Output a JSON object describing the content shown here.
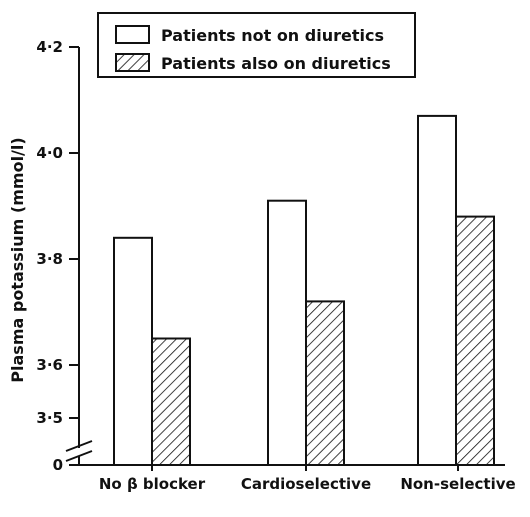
{
  "chart_data": {
    "type": "bar",
    "title": "",
    "xlabel": "",
    "ylabel": "Plasma potassium (mmol/l)",
    "categories": [
      "No β blocker",
      "Cardioselective",
      "Non-selective"
    ],
    "series": [
      {
        "name": "Patients not on diuretics",
        "pattern": "open",
        "values": [
          3.84,
          3.91,
          4.07
        ]
      },
      {
        "name": "Patients also on diuretics",
        "pattern": "hatched",
        "values": [
          3.65,
          3.72,
          3.88
        ]
      }
    ],
    "y_ticks": [
      {
        "value": 0,
        "label": "0"
      },
      {
        "value": 3.5,
        "label": "3·5"
      },
      {
        "value": 3.6,
        "label": "3·6"
      },
      {
        "value": 3.8,
        "label": "3·8"
      },
      {
        "value": 4.0,
        "label": "4·0"
      },
      {
        "value": 4.2,
        "label": "4·2"
      }
    ],
    "ylim": [
      3.5,
      4.2
    ],
    "axis_break": true,
    "grid": false,
    "legend_position": "top"
  }
}
